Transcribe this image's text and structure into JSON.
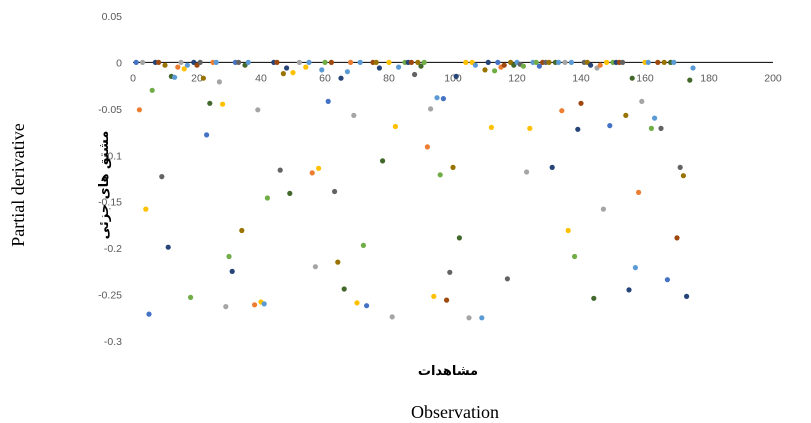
{
  "chart_data": {
    "type": "scatter",
    "xlabel": "Observation",
    "xlabel_secondary": "مشاهدات",
    "ylabel": "Partial derivative",
    "ylabel_secondary": "مشتق های جزئی",
    "xlim": [
      0,
      200
    ],
    "ylim": [
      -0.3,
      0.05
    ],
    "x_ticks": [
      "0",
      "20",
      "40",
      "60",
      "80",
      "100",
      "120",
      "140",
      "160",
      "180",
      "200"
    ],
    "y_ticks": [
      "0.05",
      "0",
      "-0.05",
      "-0.1",
      "-0.15",
      "-0.2",
      "-0.25",
      "-0.3"
    ],
    "grid": false,
    "legend": "none",
    "colors": [
      "#4472c4",
      "#ed7d31",
      "#a5a5a5",
      "#ffc000",
      "#5b9bd5",
      "#70ad47",
      "#264478",
      "#9e480e",
      "#636363",
      "#997300",
      "#43682b"
    ],
    "points": [
      {
        "x": 1,
        "y": 0,
        "c": 0
      },
      {
        "x": 2,
        "y": -0.051,
        "c": 1
      },
      {
        "x": 3,
        "y": 0,
        "c": 2
      },
      {
        "x": 4,
        "y": -0.158,
        "c": 3
      },
      {
        "x": 5,
        "y": -0.271,
        "c": 0
      },
      {
        "x": 6,
        "y": -0.03,
        "c": 5
      },
      {
        "x": 7,
        "y": 0,
        "c": 6
      },
      {
        "x": 8,
        "y": 0,
        "c": 7
      },
      {
        "x": 9,
        "y": -0.123,
        "c": 8
      },
      {
        "x": 10,
        "y": -0.003,
        "c": 9
      },
      {
        "x": 11,
        "y": -0.199,
        "c": 6
      },
      {
        "x": 12,
        "y": -0.015,
        "c": 10
      },
      {
        "x": 13,
        "y": -0.016,
        "c": 4
      },
      {
        "x": 14,
        "y": -0.005,
        "c": 1
      },
      {
        "x": 15,
        "y": 0,
        "c": 2
      },
      {
        "x": 16,
        "y": -0.007,
        "c": 3
      },
      {
        "x": 17,
        "y": -0.003,
        "c": 4
      },
      {
        "x": 18,
        "y": -0.253,
        "c": 5
      },
      {
        "x": 19,
        "y": 0,
        "c": 6
      },
      {
        "x": 20,
        "y": -0.003,
        "c": 7
      },
      {
        "x": 21,
        "y": 0,
        "c": 8
      },
      {
        "x": 22,
        "y": -0.017,
        "c": 9
      },
      {
        "x": 23,
        "y": -0.078,
        "c": 0
      },
      {
        "x": 24,
        "y": -0.044,
        "c": 10
      },
      {
        "x": 25,
        "y": 0,
        "c": 1
      },
      {
        "x": 26,
        "y": 0,
        "c": 4
      },
      {
        "x": 27,
        "y": -0.021,
        "c": 2
      },
      {
        "x": 28,
        "y": -0.045,
        "c": 3
      },
      {
        "x": 29,
        "y": -0.263,
        "c": 2
      },
      {
        "x": 30,
        "y": -0.209,
        "c": 5
      },
      {
        "x": 31,
        "y": -0.225,
        "c": 6
      },
      {
        "x": 32,
        "y": 0,
        "c": 0
      },
      {
        "x": 33,
        "y": 0,
        "c": 8
      },
      {
        "x": 34,
        "y": -0.181,
        "c": 9
      },
      {
        "x": 35,
        "y": -0.003,
        "c": 10
      },
      {
        "x": 36,
        "y": 0,
        "c": 4
      },
      {
        "x": 38,
        "y": -0.261,
        "c": 1
      },
      {
        "x": 39,
        "y": -0.051,
        "c": 2
      },
      {
        "x": 40,
        "y": -0.258,
        "c": 3
      },
      {
        "x": 41,
        "y": -0.26,
        "c": 4
      },
      {
        "x": 42,
        "y": -0.146,
        "c": 5
      },
      {
        "x": 44,
        "y": 0,
        "c": 6
      },
      {
        "x": 45,
        "y": 0,
        "c": 7
      },
      {
        "x": 46,
        "y": -0.116,
        "c": 8
      },
      {
        "x": 47,
        "y": -0.012,
        "c": 9
      },
      {
        "x": 48,
        "y": -0.006,
        "c": 6
      },
      {
        "x": 49,
        "y": -0.141,
        "c": 10
      },
      {
        "x": 50,
        "y": -0.011,
        "c": 3
      },
      {
        "x": 52,
        "y": 0,
        "c": 2
      },
      {
        "x": 54,
        "y": -0.005,
        "c": 3
      },
      {
        "x": 55,
        "y": 0,
        "c": 4
      },
      {
        "x": 56,
        "y": -0.119,
        "c": 1
      },
      {
        "x": 57,
        "y": -0.22,
        "c": 2
      },
      {
        "x": 58,
        "y": -0.114,
        "c": 3
      },
      {
        "x": 59,
        "y": -0.008,
        "c": 4
      },
      {
        "x": 60,
        "y": 0,
        "c": 5
      },
      {
        "x": 61,
        "y": -0.042,
        "c": 0
      },
      {
        "x": 62,
        "y": 0,
        "c": 7
      },
      {
        "x": 63,
        "y": -0.139,
        "c": 8
      },
      {
        "x": 64,
        "y": -0.215,
        "c": 9
      },
      {
        "x": 65,
        "y": -0.017,
        "c": 6
      },
      {
        "x": 66,
        "y": -0.244,
        "c": 10
      },
      {
        "x": 67,
        "y": -0.01,
        "c": 4
      },
      {
        "x": 68,
        "y": 0,
        "c": 1
      },
      {
        "x": 69,
        "y": -0.057,
        "c": 2
      },
      {
        "x": 70,
        "y": -0.259,
        "c": 3
      },
      {
        "x": 71,
        "y": 0,
        "c": 4
      },
      {
        "x": 72,
        "y": -0.197,
        "c": 5
      },
      {
        "x": 73,
        "y": -0.262,
        "c": 0
      },
      {
        "x": 75,
        "y": 0,
        "c": 7
      },
      {
        "x": 76,
        "y": 0,
        "c": 9
      },
      {
        "x": 77,
        "y": -0.006,
        "c": 6
      },
      {
        "x": 78,
        "y": -0.106,
        "c": 10
      },
      {
        "x": 80,
        "y": 0,
        "c": 3
      },
      {
        "x": 81,
        "y": -0.274,
        "c": 2
      },
      {
        "x": 82,
        "y": -0.069,
        "c": 3
      },
      {
        "x": 83,
        "y": -0.005,
        "c": 4
      },
      {
        "x": 85,
        "y": 0,
        "c": 5
      },
      {
        "x": 86,
        "y": 0,
        "c": 6
      },
      {
        "x": 87,
        "y": 0,
        "c": 7
      },
      {
        "x": 88,
        "y": -0.013,
        "c": 8
      },
      {
        "x": 89,
        "y": 0,
        "c": 9
      },
      {
        "x": 90,
        "y": -0.004,
        "c": 10
      },
      {
        "x": 91,
        "y": 0,
        "c": 5
      },
      {
        "x": 92,
        "y": -0.091,
        "c": 1
      },
      {
        "x": 93,
        "y": -0.05,
        "c": 2
      },
      {
        "x": 94,
        "y": -0.252,
        "c": 3
      },
      {
        "x": 95,
        "y": -0.038,
        "c": 4
      },
      {
        "x": 96,
        "y": -0.121,
        "c": 5
      },
      {
        "x": 97,
        "y": -0.039,
        "c": 0
      },
      {
        "x": 98,
        "y": -0.256,
        "c": 7
      },
      {
        "x": 99,
        "y": -0.226,
        "c": 8
      },
      {
        "x": 100,
        "y": -0.113,
        "c": 9
      },
      {
        "x": 101,
        "y": -0.015,
        "c": 6
      },
      {
        "x": 102,
        "y": -0.189,
        "c": 10
      },
      {
        "x": 104,
        "y": 0,
        "c": 3
      },
      {
        "x": 105,
        "y": -0.275,
        "c": 2
      },
      {
        "x": 106,
        "y": 0,
        "c": 3
      },
      {
        "x": 107,
        "y": -0.003,
        "c": 4
      },
      {
        "x": 109,
        "y": -0.275,
        "c": 4
      },
      {
        "x": 110,
        "y": -0.008,
        "c": 9
      },
      {
        "x": 111,
        "y": 0,
        "c": 6
      },
      {
        "x": 112,
        "y": -0.07,
        "c": 3
      },
      {
        "x": 113,
        "y": -0.009,
        "c": 5
      },
      {
        "x": 114,
        "y": 0,
        "c": 0
      },
      {
        "x": 115,
        "y": -0.005,
        "c": 1
      },
      {
        "x": 116,
        "y": -0.003,
        "c": 7
      },
      {
        "x": 117,
        "y": -0.233,
        "c": 8
      },
      {
        "x": 118,
        "y": 0,
        "c": 9
      },
      {
        "x": 119,
        "y": -0.003,
        "c": 10
      },
      {
        "x": 120,
        "y": 0,
        "c": 4
      },
      {
        "x": 121,
        "y": -0.002,
        "c": 8
      },
      {
        "x": 122,
        "y": -0.004,
        "c": 5
      },
      {
        "x": 123,
        "y": -0.118,
        "c": 2
      },
      {
        "x": 124,
        "y": -0.071,
        "c": 3
      },
      {
        "x": 125,
        "y": 0,
        "c": 4
      },
      {
        "x": 126,
        "y": 0,
        "c": 5
      },
      {
        "x": 127,
        "y": -0.004,
        "c": 0
      },
      {
        "x": 128,
        "y": 0,
        "c": 7
      },
      {
        "x": 129,
        "y": 0,
        "c": 8
      },
      {
        "x": 130,
        "y": 0,
        "c": 9
      },
      {
        "x": 131,
        "y": -0.113,
        "c": 6
      },
      {
        "x": 132,
        "y": 0,
        "c": 10
      },
      {
        "x": 133,
        "y": 0,
        "c": 4
      },
      {
        "x": 134,
        "y": -0.052,
        "c": 1
      },
      {
        "x": 135,
        "y": 0,
        "c": 2
      },
      {
        "x": 136,
        "y": -0.181,
        "c": 3
      },
      {
        "x": 137,
        "y": 0,
        "c": 4
      },
      {
        "x": 138,
        "y": -0.209,
        "c": 5
      },
      {
        "x": 139,
        "y": -0.072,
        "c": 6
      },
      {
        "x": 140,
        "y": -0.044,
        "c": 7
      },
      {
        "x": 141,
        "y": 0,
        "c": 8
      },
      {
        "x": 142,
        "y": 0,
        "c": 9
      },
      {
        "x": 143,
        "y": -0.003,
        "c": 6
      },
      {
        "x": 144,
        "y": -0.254,
        "c": 10
      },
      {
        "x": 145,
        "y": -0.006,
        "c": 2
      },
      {
        "x": 146,
        "y": -0.003,
        "c": 1
      },
      {
        "x": 147,
        "y": -0.158,
        "c": 2
      },
      {
        "x": 148,
        "y": 0,
        "c": 3
      },
      {
        "x": 149,
        "y": -0.068,
        "c": 0
      },
      {
        "x": 150,
        "y": 0,
        "c": 5
      },
      {
        "x": 151,
        "y": 0,
        "c": 6
      },
      {
        "x": 152,
        "y": 0,
        "c": 7
      },
      {
        "x": 153,
        "y": 0,
        "c": 8
      },
      {
        "x": 154,
        "y": -0.057,
        "c": 9
      },
      {
        "x": 155,
        "y": -0.245,
        "c": 6
      },
      {
        "x": 156,
        "y": -0.017,
        "c": 10
      },
      {
        "x": 157,
        "y": -0.221,
        "c": 4
      },
      {
        "x": 158,
        "y": -0.14,
        "c": 1
      },
      {
        "x": 159,
        "y": -0.042,
        "c": 2
      },
      {
        "x": 160,
        "y": 0,
        "c": 3
      },
      {
        "x": 161,
        "y": 0,
        "c": 4
      },
      {
        "x": 162,
        "y": -0.071,
        "c": 5
      },
      {
        "x": 163,
        "y": -0.06,
        "c": 4
      },
      {
        "x": 164,
        "y": 0,
        "c": 7
      },
      {
        "x": 165,
        "y": -0.071,
        "c": 8
      },
      {
        "x": 166,
        "y": 0,
        "c": 9
      },
      {
        "x": 167,
        "y": -0.234,
        "c": 0
      },
      {
        "x": 168,
        "y": 0,
        "c": 10
      },
      {
        "x": 169,
        "y": 0,
        "c": 4
      },
      {
        "x": 170,
        "y": -0.189,
        "c": 7
      },
      {
        "x": 171,
        "y": -0.113,
        "c": 8
      },
      {
        "x": 172,
        "y": -0.122,
        "c": 9
      },
      {
        "x": 173,
        "y": -0.252,
        "c": 6
      },
      {
        "x": 174,
        "y": -0.019,
        "c": 10
      },
      {
        "x": 175,
        "y": -0.006,
        "c": 4
      }
    ]
  }
}
